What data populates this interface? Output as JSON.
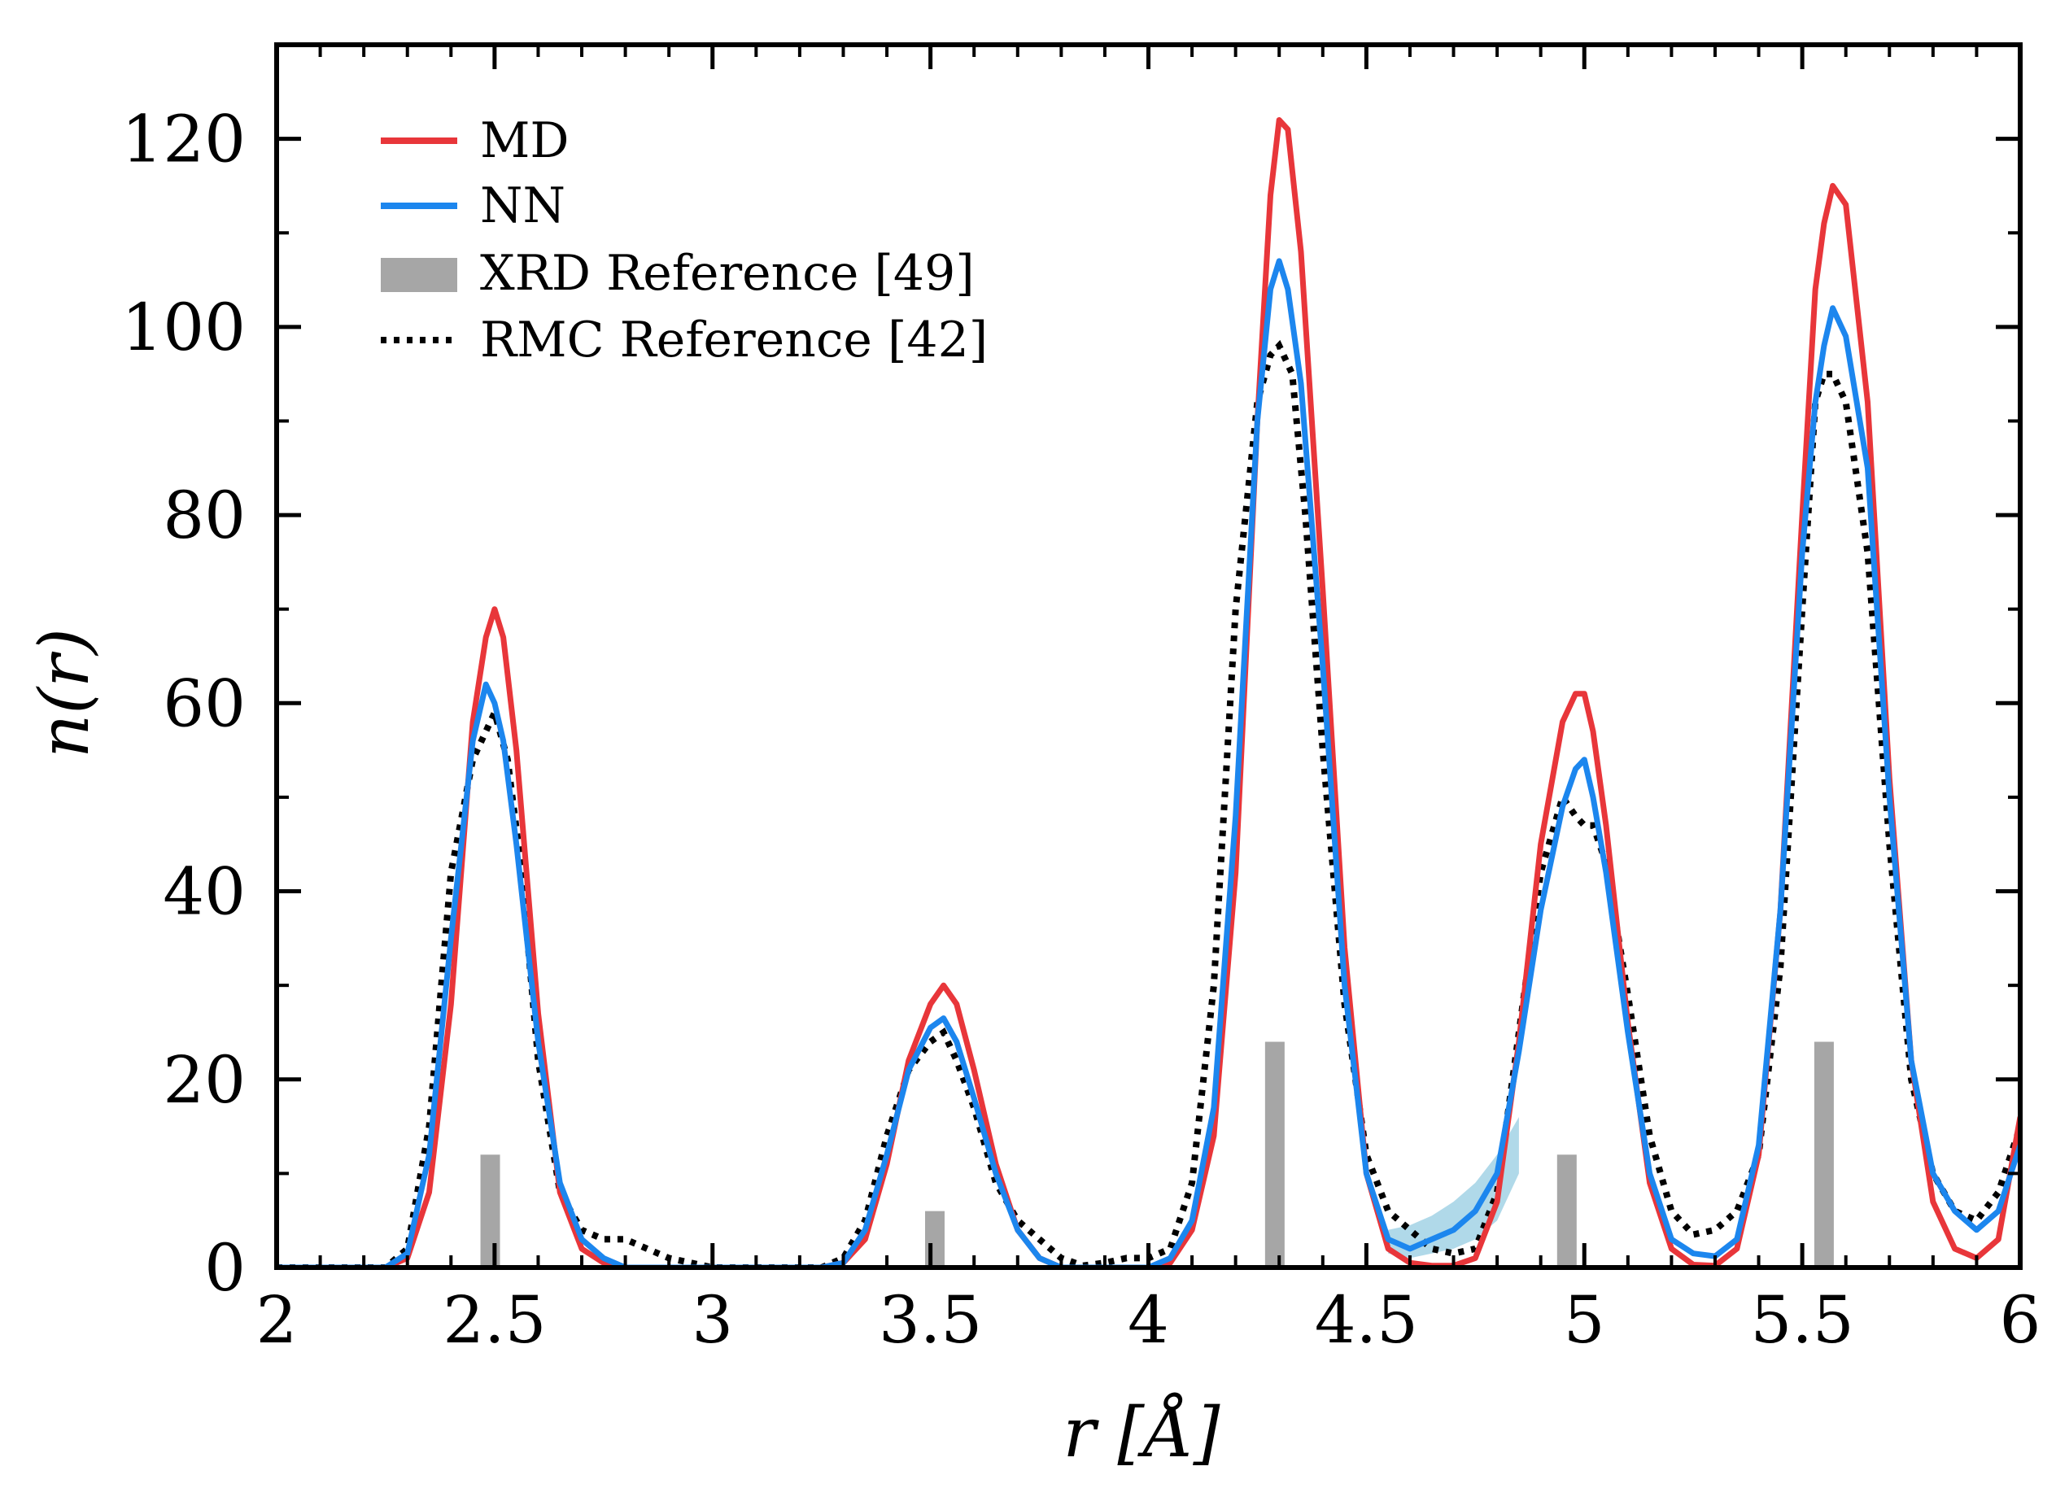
{
  "chart_data": {
    "type": "line",
    "title": "",
    "xlabel": "r [Å]",
    "ylabel": "n(r)",
    "xlim": [
      2,
      6
    ],
    "ylim": [
      0,
      130
    ],
    "xticks": [
      2,
      2.5,
      3,
      3.5,
      4,
      4.5,
      5,
      5.5,
      6
    ],
    "xtick_labels": [
      "2",
      "2.5",
      "3",
      "3.5",
      "4",
      "4.5",
      "5",
      "5.5",
      "6"
    ],
    "yticks": [
      0,
      20,
      40,
      60,
      80,
      100,
      120
    ],
    "ytick_labels": [
      "0",
      "20",
      "40",
      "60",
      "80",
      "100",
      "120"
    ],
    "grid": false,
    "legend_position": "top-left",
    "colors": {
      "md": "#e8363a",
      "nn": "#1c86ee",
      "nn_band": "#9ccfe3",
      "xrd": "#a6a6a6",
      "rmc": "#000000"
    },
    "legend": [
      "MD",
      "NN",
      "XRD Reference [49]",
      "RMC Reference [42]"
    ],
    "series": [
      {
        "name": "MD",
        "style": "solid",
        "x": [
          2.0,
          2.25,
          2.3,
          2.35,
          2.4,
          2.45,
          2.48,
          2.5,
          2.52,
          2.55,
          2.6,
          2.65,
          2.7,
          2.75,
          2.8,
          3.25,
          3.3,
          3.35,
          3.4,
          3.45,
          3.5,
          3.53,
          3.56,
          3.6,
          3.65,
          3.7,
          3.75,
          3.8,
          4.0,
          4.05,
          4.1,
          4.15,
          4.2,
          4.25,
          4.28,
          4.3,
          4.32,
          4.35,
          4.4,
          4.45,
          4.5,
          4.55,
          4.6,
          4.65,
          4.7,
          4.75,
          4.8,
          4.85,
          4.9,
          4.95,
          4.98,
          5.0,
          5.02,
          5.05,
          5.1,
          5.15,
          5.2,
          5.25,
          5.3,
          5.35,
          5.4,
          5.45,
          5.5,
          5.53,
          5.55,
          5.57,
          5.6,
          5.65,
          5.7,
          5.75,
          5.8,
          5.85,
          5.9,
          5.95,
          6.0
        ],
        "values": [
          0,
          0,
          1,
          8,
          28,
          58,
          67,
          70,
          67,
          55,
          27,
          8,
          2,
          0.5,
          0,
          0,
          0.5,
          3,
          11,
          22,
          28,
          30,
          28,
          21,
          11,
          4,
          1,
          0,
          0,
          0.5,
          4,
          14,
          42,
          90,
          114,
          122,
          121,
          108,
          72,
          34,
          10,
          2,
          0.5,
          0.2,
          0.2,
          1,
          7,
          24,
          45,
          58,
          61,
          61,
          57,
          47,
          26,
          9,
          2,
          0.3,
          0.2,
          2,
          12,
          38,
          80,
          104,
          111,
          115,
          113,
          92,
          52,
          22,
          7,
          2,
          1,
          3,
          16
        ]
      },
      {
        "name": "NN",
        "style": "solid",
        "x": [
          2.0,
          2.25,
          2.3,
          2.35,
          2.4,
          2.45,
          2.48,
          2.5,
          2.52,
          2.55,
          2.6,
          2.65,
          2.7,
          2.75,
          2.8,
          3.25,
          3.3,
          3.35,
          3.4,
          3.45,
          3.5,
          3.53,
          3.56,
          3.6,
          3.65,
          3.7,
          3.75,
          3.8,
          4.0,
          4.05,
          4.1,
          4.15,
          4.2,
          4.25,
          4.28,
          4.3,
          4.32,
          4.35,
          4.4,
          4.45,
          4.5,
          4.55,
          4.6,
          4.65,
          4.7,
          4.75,
          4.8,
          4.85,
          4.9,
          4.95,
          4.98,
          5.0,
          5.02,
          5.05,
          5.1,
          5.15,
          5.2,
          5.25,
          5.3,
          5.35,
          5.4,
          5.45,
          5.5,
          5.53,
          5.55,
          5.57,
          5.6,
          5.65,
          5.7,
          5.75,
          5.8,
          5.85,
          5.9,
          5.95,
          6.0
        ],
        "values": [
          0,
          0,
          1.5,
          12,
          35,
          56,
          62,
          60,
          56,
          45,
          24,
          9,
          3,
          1,
          0,
          0,
          0.5,
          4,
          12,
          21,
          25.5,
          26.5,
          24,
          18,
          10,
          4,
          1,
          0,
          0,
          1,
          5,
          17,
          48,
          90,
          104,
          107,
          104,
          94,
          64,
          30,
          10,
          3,
          2,
          3,
          4,
          6,
          10,
          23,
          38,
          49,
          53,
          54,
          50,
          42,
          25,
          10,
          3,
          1.5,
          1.2,
          3,
          13,
          38,
          76,
          92,
          98,
          102,
          99,
          85,
          50,
          22,
          10,
          6,
          4,
          6,
          13
        ]
      },
      {
        "name": "RMC Reference [42]",
        "style": "dotted",
        "x": [
          2.0,
          2.25,
          2.3,
          2.35,
          2.4,
          2.45,
          2.48,
          2.5,
          2.53,
          2.56,
          2.6,
          2.65,
          2.7,
          2.75,
          2.8,
          2.85,
          2.9,
          2.95,
          3.0,
          3.25,
          3.3,
          3.35,
          3.4,
          3.45,
          3.5,
          3.53,
          3.56,
          3.6,
          3.65,
          3.7,
          3.75,
          3.8,
          3.85,
          3.9,
          3.95,
          4.0,
          4.05,
          4.1,
          4.15,
          4.2,
          4.25,
          4.28,
          4.3,
          4.33,
          4.36,
          4.4,
          4.45,
          4.5,
          4.55,
          4.6,
          4.65,
          4.7,
          4.75,
          4.8,
          4.85,
          4.9,
          4.95,
          4.98,
          5.0,
          5.02,
          5.05,
          5.1,
          5.15,
          5.2,
          5.25,
          5.3,
          5.35,
          5.4,
          5.45,
          5.5,
          5.53,
          5.55,
          5.57,
          5.6,
          5.65,
          5.7,
          5.75,
          5.8,
          5.85,
          5.9,
          5.95,
          6.0
        ],
        "values": [
          0,
          0,
          2,
          15,
          42,
          54,
          57,
          59,
          54,
          43,
          22,
          8,
          4,
          3,
          3,
          2,
          1,
          0.5,
          0,
          0,
          1,
          5,
          14,
          21,
          24,
          25,
          22,
          17,
          9,
          5,
          3,
          1,
          0.2,
          0.5,
          1,
          1,
          2,
          9,
          30,
          70,
          92,
          97,
          98,
          95,
          80,
          55,
          28,
          12,
          6,
          4,
          2,
          1.5,
          2,
          8,
          25,
          42,
          50,
          48,
          47,
          47,
          43,
          29,
          14,
          6,
          3.5,
          4,
          6,
          12,
          32,
          70,
          92,
          95,
          95,
          92,
          76,
          45,
          20,
          10,
          6,
          5,
          8,
          15
        ]
      }
    ],
    "nn_uncertainty": {
      "x": [
        4.55,
        4.6,
        4.65,
        4.7,
        4.75,
        4.8,
        4.85
      ],
      "lower": [
        1.5,
        1,
        1.5,
        2,
        3,
        5,
        10
      ],
      "upper": [
        4,
        4.5,
        5.5,
        7,
        9,
        12,
        16
      ]
    },
    "xrd_reference": {
      "x": [
        2.49,
        3.51,
        4.29,
        4.96,
        5.55
      ],
      "values": [
        12,
        6,
        24,
        12,
        24
      ]
    }
  }
}
